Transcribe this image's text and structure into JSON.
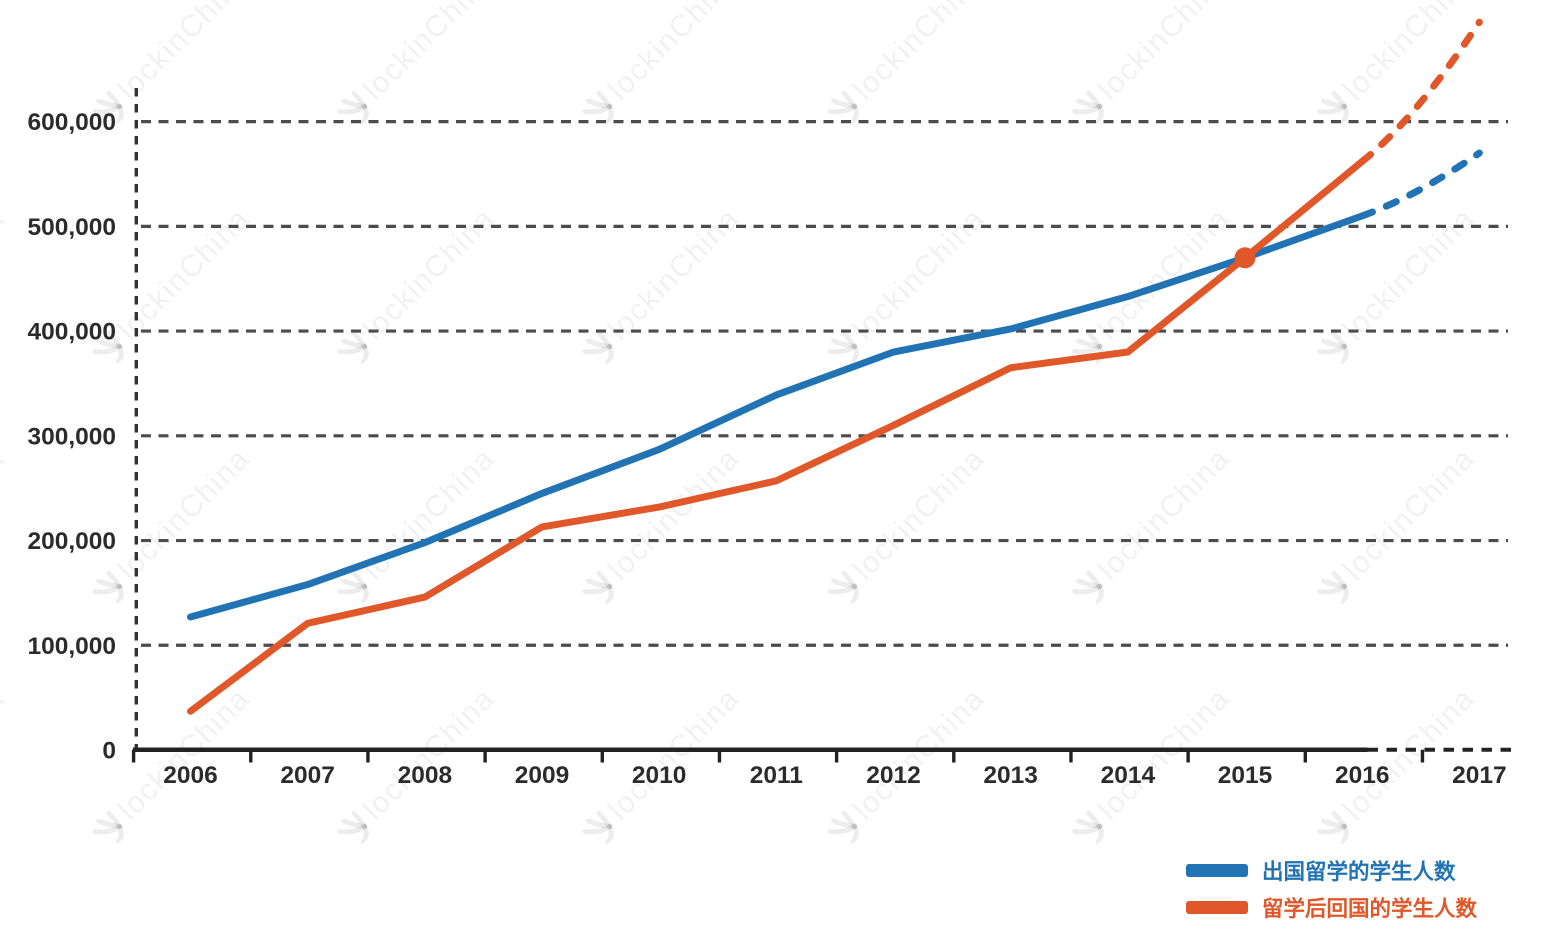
{
  "watermark": {
    "text": "lockinChina"
  },
  "chart_data": {
    "type": "line",
    "title": "",
    "xlabel": "",
    "ylabel": "",
    "categories": [
      2006,
      2007,
      2008,
      2009,
      2010,
      2011,
      2012,
      2013,
      2014,
      2015,
      2016,
      2017
    ],
    "xtick_labels": [
      "2006",
      "2007",
      "2008",
      "2009",
      "2010",
      "2011",
      "2012",
      "2013",
      "2014",
      "2015",
      "2016",
      "2017"
    ],
    "series": [
      {
        "name": "出国留学的学生人数",
        "color": "#2173b4",
        "values": [
          127000,
          158000,
          198000,
          245000,
          287000,
          339000,
          380000,
          402000,
          433000,
          470000,
          510000,
          570000
        ],
        "dashed_from_year": 2016
      },
      {
        "name": "留学后回国的学生人数",
        "color": "#e0582a",
        "values": [
          37000,
          121000,
          146000,
          213000,
          232000,
          257000,
          310000,
          365000,
          380000,
          470000,
          562000,
          695000
        ],
        "dashed_from_year": 2016
      }
    ],
    "crossing_marker": {
      "year": 2015,
      "value": 470000,
      "color": "#e0582a"
    },
    "ylim": [
      0,
      650000
    ],
    "yticks": [
      0,
      100000,
      200000,
      300000,
      400000,
      500000,
      600000
    ],
    "ytick_labels": [
      "0",
      "100,000",
      "200,000",
      "300,000",
      "400,000",
      "500,000",
      "600,000"
    ],
    "grid": "horizontal-dashed",
    "legend_position": "bottom-right"
  },
  "legend": {
    "items": [
      {
        "label": "出国留学的学生人数",
        "color": "#2173b4"
      },
      {
        "label": "留学后回国的学生人数",
        "color": "#e0582a"
      }
    ]
  }
}
